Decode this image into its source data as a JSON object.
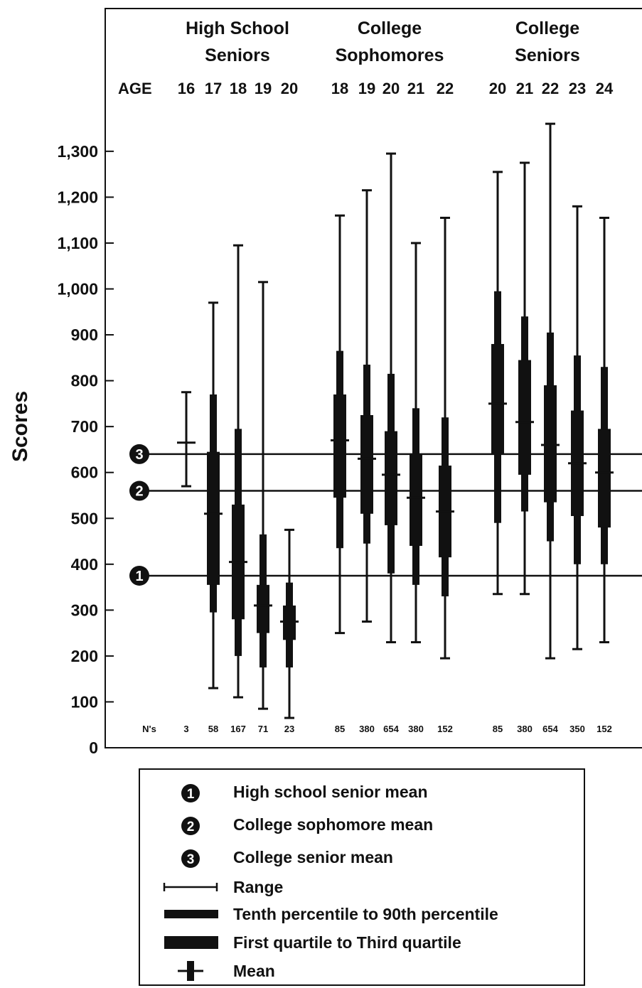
{
  "chart_data": {
    "type": "box",
    "ylabel": "Scores",
    "ylim": [
      0,
      1390
    ],
    "yticks": [
      0,
      100,
      200,
      300,
      400,
      500,
      600,
      700,
      800,
      900,
      1000,
      1100,
      1200,
      1300
    ],
    "ytick_labels": [
      "0",
      "100",
      "200",
      "300",
      "400",
      "500",
      "600",
      "700",
      "800",
      "900",
      "1,000",
      "1,100",
      "1,200",
      "1,300"
    ],
    "age_label": "AGE",
    "n_label": "N's",
    "groups": [
      {
        "title_line1": "High School",
        "title_line2": "Seniors",
        "ages": [
          "16",
          "17",
          "18",
          "19",
          "20"
        ],
        "boxes": [
          {
            "age": "16",
            "n": "3",
            "min": 570,
            "p10": null,
            "q1": null,
            "mean": 665,
            "q3": null,
            "p90": null,
            "max": 775
          },
          {
            "age": "17",
            "n": "58",
            "min": 130,
            "p10": 295,
            "q1": 355,
            "mean": 510,
            "q3": 645,
            "p90": 770,
            "max": 970
          },
          {
            "age": "18",
            "n": "167",
            "min": 110,
            "p10": 200,
            "q1": 280,
            "mean": 405,
            "q3": 530,
            "p90": 695,
            "max": 1095
          },
          {
            "age": "19",
            "n": "71",
            "min": 85,
            "p10": 175,
            "q1": 250,
            "mean": 310,
            "q3": 355,
            "p90": 465,
            "max": 1015
          },
          {
            "age": "20",
            "n": "23",
            "min": 65,
            "p10": 175,
            "q1": 235,
            "mean": 275,
            "q3": 310,
            "p90": 360,
            "max": 475
          }
        ]
      },
      {
        "title_line1": "College",
        "title_line2": "Sophomores",
        "ages": [
          "18",
          "19",
          "20",
          "21",
          "22"
        ],
        "boxes": [
          {
            "age": "18",
            "n": "85",
            "min": 250,
            "p10": 435,
            "q1": 545,
            "mean": 670,
            "q3": 770,
            "p90": 865,
            "max": 1160
          },
          {
            "age": "19",
            "n": "380",
            "min": 275,
            "p10": 445,
            "q1": 510,
            "mean": 630,
            "q3": 725,
            "p90": 835,
            "max": 1215
          },
          {
            "age": "20",
            "n": "654",
            "min": 230,
            "p10": 380,
            "q1": 485,
            "mean": 595,
            "q3": 690,
            "p90": 815,
            "max": 1295
          },
          {
            "age": "21",
            "n": "380",
            "min": 230,
            "p10": 355,
            "q1": 440,
            "mean": 545,
            "q3": 640,
            "p90": 740,
            "max": 1100
          },
          {
            "age": "22",
            "n": "152",
            "min": 195,
            "p10": 330,
            "q1": 415,
            "mean": 515,
            "q3": 615,
            "p90": 720,
            "max": 1155
          }
        ]
      },
      {
        "title_line1": "College",
        "title_line2": "Seniors",
        "ages": [
          "20",
          "21",
          "22",
          "23",
          "24"
        ],
        "boxes": [
          {
            "age": "20",
            "n": "85",
            "min": 335,
            "p10": 490,
            "q1": 640,
            "mean": 750,
            "q3": 880,
            "p90": 995,
            "max": 1255
          },
          {
            "age": "21",
            "n": "380",
            "min": 335,
            "p10": 515,
            "q1": 595,
            "mean": 710,
            "q3": 845,
            "p90": 940,
            "max": 1275
          },
          {
            "age": "22",
            "n": "654",
            "min": 195,
            "p10": 450,
            "q1": 535,
            "mean": 660,
            "q3": 790,
            "p90": 905,
            "max": 1360
          },
          {
            "age": "23",
            "n": "350",
            "min": 215,
            "p10": 400,
            "q1": 505,
            "mean": 620,
            "q3": 735,
            "p90": 855,
            "max": 1180
          },
          {
            "age": "24",
            "n": "152",
            "min": 230,
            "p10": 400,
            "q1": 480,
            "mean": 600,
            "q3": 695,
            "p90": 830,
            "max": 1155
          }
        ]
      }
    ],
    "reference_lines": [
      {
        "marker": "1",
        "value": 375
      },
      {
        "marker": "2",
        "value": 560
      },
      {
        "marker": "3",
        "value": 640
      }
    ],
    "legend": {
      "placement": "bottom",
      "entries": [
        {
          "marker": "1",
          "symbol": "circle",
          "label": "High school senior mean"
        },
        {
          "marker": "2",
          "symbol": "circle",
          "label": "College sophomore mean"
        },
        {
          "marker": "3",
          "symbol": "circle",
          "label": "College senior mean"
        },
        {
          "symbol": "range",
          "label": "Range"
        },
        {
          "symbol": "p10-p90",
          "label": "Tenth percentile to 90th percentile"
        },
        {
          "symbol": "q1-q3",
          "label": "First quartile to Third quartile"
        },
        {
          "symbol": "mean",
          "label": "Mean"
        }
      ]
    }
  }
}
